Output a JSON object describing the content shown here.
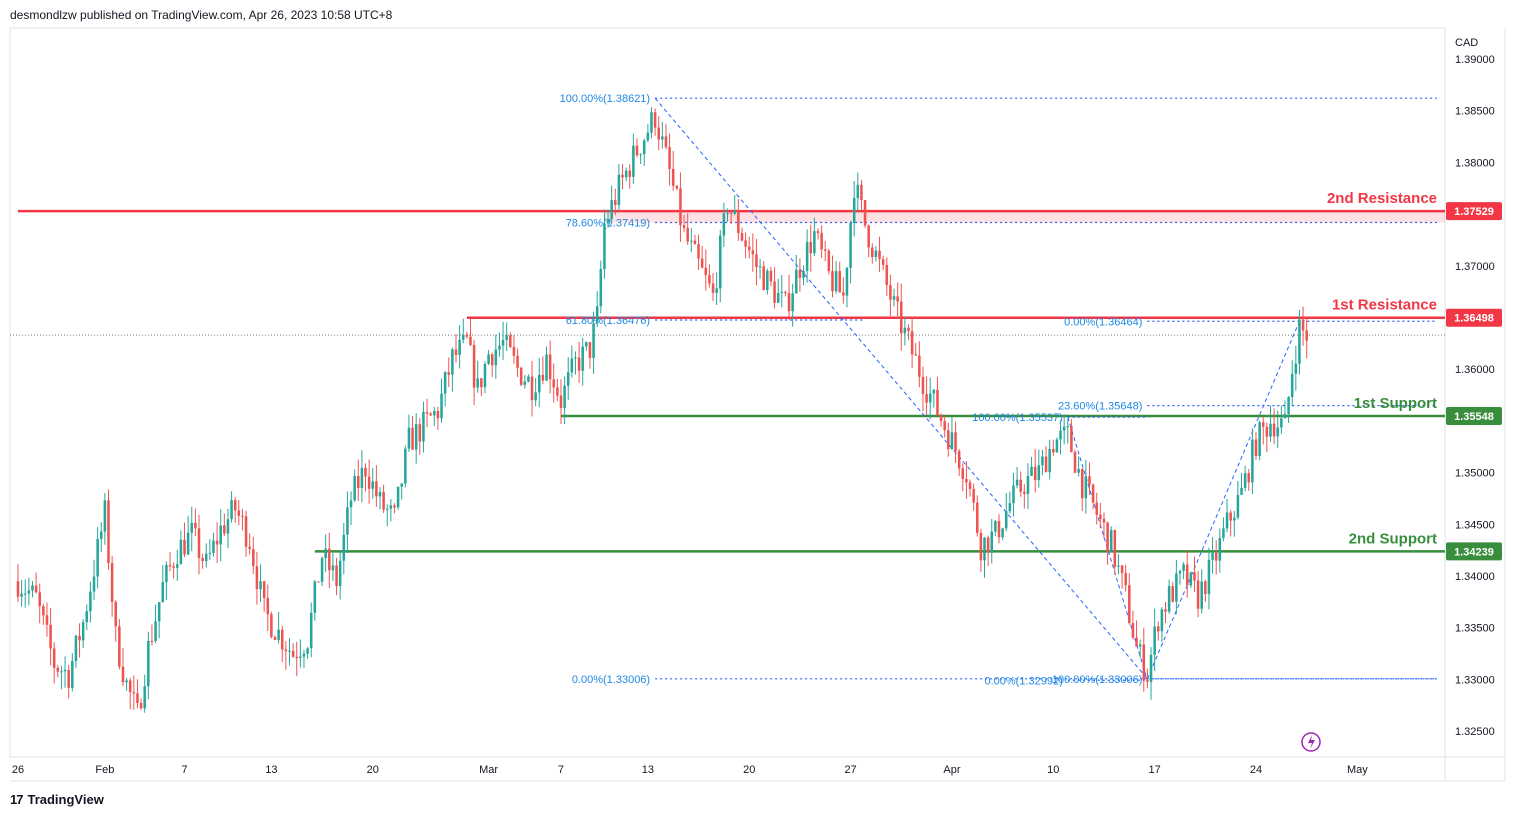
{
  "header": {
    "publisher_text": "desmondlzw published on TradingView.com, Apr 26, 2023 10:58 UTC+8"
  },
  "footer": {
    "brand": "TradingView",
    "logo_icon": "tradingview-logo-icon"
  },
  "colors": {
    "up": "#26a69a",
    "down": "#ef5350",
    "resistance": "#f23645",
    "support": "#388e3c",
    "fib": "#2962ff",
    "fib_text": "#1e88e5"
  },
  "chart_data": {
    "type": "candlestick",
    "currency_label": "CAD",
    "y_ticks": [
      1.39,
      1.385,
      1.38,
      1.375,
      1.37,
      1.365,
      1.36,
      1.355,
      1.35,
      1.345,
      1.34,
      1.335,
      1.33,
      1.325
    ],
    "y_tick_labels": [
      "1.39000",
      "1.38500",
      "1.38000",
      "1.37500",
      "1.37000",
      "1.36500",
      "1.36000",
      "1.35500",
      "1.35000",
      "1.34500",
      "1.34000",
      "1.33500",
      "1.33000",
      "1.32500"
    ],
    "ylim": [
      1.3225,
      1.393
    ],
    "x_ticks": [
      {
        "label": "26",
        "i": 0
      },
      {
        "label": "Feb",
        "i": 24
      },
      {
        "label": "7",
        "i": 46
      },
      {
        "label": "13",
        "i": 70
      },
      {
        "label": "20",
        "i": 98
      },
      {
        "label": "Mar",
        "i": 130
      },
      {
        "label": "7",
        "i": 150
      },
      {
        "label": "13",
        "i": 174
      },
      {
        "label": "20",
        "i": 202
      },
      {
        "label": "27",
        "i": 230
      },
      {
        "label": "Apr",
        "i": 258
      },
      {
        "label": "10",
        "i": 286
      },
      {
        "label": "17",
        "i": 314
      },
      {
        "label": "24",
        "i": 342
      },
      {
        "label": "May",
        "i": 370
      }
    ],
    "horizontal_levels": [
      {
        "name": "2nd Resistance",
        "price": 1.37529,
        "label": "1.37529",
        "kind": "resistance",
        "start_i": 0
      },
      {
        "name": "1st Resistance",
        "price": 1.36498,
        "label": "1.36498",
        "kind": "resistance",
        "start_i": 124
      },
      {
        "name": "1st Support",
        "price": 1.35548,
        "label": "1.35548",
        "kind": "support",
        "start_i": 150
      },
      {
        "name": "2nd Support",
        "price": 1.34239,
        "label": "1.34239",
        "kind": "support",
        "start_i": 82
      }
    ],
    "fib_labels": [
      {
        "text": "100.00%(1.38621)",
        "price": 1.38621,
        "i": 176,
        "end_i": 392
      },
      {
        "text": "78.60%(1.37419)",
        "price": 1.37419,
        "i": 176,
        "end_i": 392
      },
      {
        "text": "61.80%(1.36476)",
        "price": 1.36476,
        "i": 176,
        "end_i": 234
      },
      {
        "text": "0.00%(1.33006)",
        "price": 1.33006,
        "i": 176,
        "end_i": 392
      },
      {
        "text": "0.00%(1.36464)",
        "price": 1.36464,
        "i": 312,
        "end_i": 392
      },
      {
        "text": "23.60%(1.35648)",
        "price": 1.35648,
        "i": 312,
        "end_i": 392
      },
      {
        "text": "100.00%(1.35537)",
        "price": 1.35537,
        "i": 290,
        "end_i": 312
      },
      {
        "text": "0.00%(1.32992)",
        "price": 1.32992,
        "i": 290,
        "end_i": 312
      },
      {
        "text": "100.00%(1.33006)",
        "price": 1.33006,
        "i": 312,
        "end_i": 392
      }
    ],
    "fib_swings": [
      {
        "from_i": 176,
        "from_p": 1.38621,
        "to_i": 312,
        "to_p": 1.33006
      },
      {
        "from_i": 290,
        "from_p": 1.35537,
        "to_i": 312,
        "to_p": 1.32992
      },
      {
        "from_i": 312,
        "from_p": 1.33006,
        "to_i": 354,
        "to_p": 1.36464
      }
    ],
    "last_price": 1.3633,
    "path_points": [
      [
        0,
        1.3395
      ],
      [
        5,
        1.3378
      ],
      [
        10,
        1.3315
      ],
      [
        14,
        1.3305
      ],
      [
        18,
        1.3355
      ],
      [
        22,
        1.3425
      ],
      [
        24,
        1.346
      ],
      [
        27,
        1.334
      ],
      [
        30,
        1.3295
      ],
      [
        33,
        1.3265
      ],
      [
        36,
        1.333
      ],
      [
        40,
        1.339
      ],
      [
        44,
        1.3425
      ],
      [
        48,
        1.344
      ],
      [
        52,
        1.341
      ],
      [
        56,
        1.3445
      ],
      [
        60,
        1.3465
      ],
      [
        64,
        1.3435
      ],
      [
        68,
        1.3365
      ],
      [
        72,
        1.3345
      ],
      [
        76,
        1.3325
      ],
      [
        80,
        1.334
      ],
      [
        84,
        1.342
      ],
      [
        88,
        1.3395
      ],
      [
        92,
        1.3475
      ],
      [
        96,
        1.3505
      ],
      [
        100,
        1.347
      ],
      [
        104,
        1.3455
      ],
      [
        108,
        1.353
      ],
      [
        112,
        1.3545
      ],
      [
        116,
        1.356
      ],
      [
        120,
        1.361
      ],
      [
        124,
        1.3625
      ],
      [
        127,
        1.358
      ],
      [
        130,
        1.3615
      ],
      [
        134,
        1.3625
      ],
      [
        138,
        1.36
      ],
      [
        142,
        1.3585
      ],
      [
        146,
        1.361
      ],
      [
        150,
        1.357
      ],
      [
        154,
        1.3605
      ],
      [
        158,
        1.362
      ],
      [
        160,
        1.365
      ],
      [
        162,
        1.374
      ],
      [
        166,
        1.3775
      ],
      [
        170,
        1.3805
      ],
      [
        173,
        1.3825
      ],
      [
        176,
        1.3845
      ],
      [
        180,
        1.379
      ],
      [
        184,
        1.373
      ],
      [
        188,
        1.37
      ],
      [
        192,
        1.367
      ],
      [
        196,
        1.376
      ],
      [
        200,
        1.373
      ],
      [
        204,
        1.37
      ],
      [
        208,
        1.368
      ],
      [
        212,
        1.366
      ],
      [
        216,
        1.37
      ],
      [
        220,
        1.373
      ],
      [
        224,
        1.369
      ],
      [
        228,
        1.367
      ],
      [
        231,
        1.378
      ],
      [
        234,
        1.374
      ],
      [
        238,
        1.37
      ],
      [
        242,
        1.366
      ],
      [
        246,
        1.3625
      ],
      [
        250,
        1.359
      ],
      [
        254,
        1.356
      ],
      [
        258,
        1.353
      ],
      [
        262,
        1.35
      ],
      [
        266,
        1.343
      ],
      [
        270,
        1.344
      ],
      [
        274,
        1.347
      ],
      [
        278,
        1.349
      ],
      [
        282,
        1.35
      ],
      [
        286,
        1.353
      ],
      [
        290,
        1.3535
      ],
      [
        294,
        1.349
      ],
      [
        298,
        1.346
      ],
      [
        302,
        1.343
      ],
      [
        306,
        1.338
      ],
      [
        309,
        1.333
      ],
      [
        312,
        1.3305
      ],
      [
        315,
        1.336
      ],
      [
        318,
        1.338
      ],
      [
        322,
        1.34
      ],
      [
        326,
        1.338
      ],
      [
        330,
        1.341
      ],
      [
        334,
        1.345
      ],
      [
        338,
        1.348
      ],
      [
        342,
        1.353
      ],
      [
        346,
        1.355
      ],
      [
        350,
        1.3545
      ],
      [
        352,
        1.36
      ],
      [
        354,
        1.364
      ],
      [
        356,
        1.3633
      ]
    ]
  }
}
